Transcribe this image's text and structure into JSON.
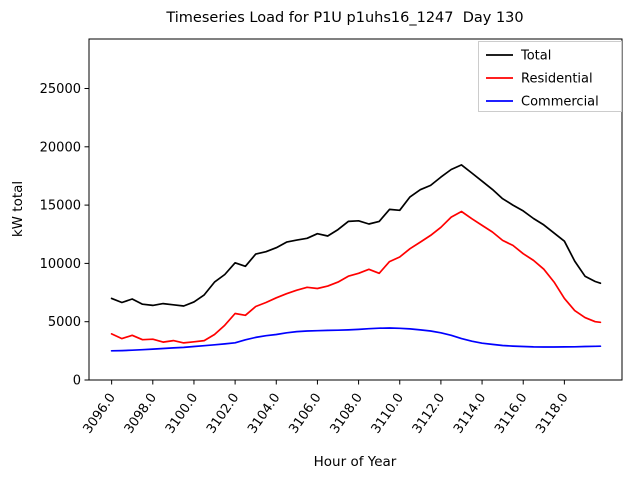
{
  "figure": {
    "title": "Timeseries Load for P1U p1uhs16_1247  Day 130",
    "xlabel": "Hour of Year",
    "ylabel": "kW total",
    "background_color": "#ffffff",
    "spine_color": "#000000"
  },
  "legend": {
    "position": "upper right",
    "border_color": "#cccccc",
    "entries": [
      {
        "label": "Total",
        "color": "#000000"
      },
      {
        "label": "Residential",
        "color": "#ff0000"
      },
      {
        "label": "Commercial",
        "color": "#0000ff"
      }
    ]
  },
  "axes": {
    "xlim": [
      3094.9,
      3120.8
    ],
    "ylim": [
      0,
      29245
    ],
    "xticks": [
      3096,
      3098,
      3100,
      3102,
      3104,
      3106,
      3108,
      3110,
      3112,
      3114,
      3116,
      3118
    ],
    "xtick_labels": [
      "3096.0",
      "3098.0",
      "3100.0",
      "3102.0",
      "3104.0",
      "3106.0",
      "3108.0",
      "3110.0",
      "3112.0",
      "3114.0",
      "3116.0",
      "3118.0"
    ],
    "yticks": [
      0,
      5000,
      10000,
      15000,
      20000,
      25000
    ],
    "ytick_labels": [
      "0",
      "5000",
      "10000",
      "15000",
      "20000",
      "25000"
    ],
    "xtick_rotation_deg": 55
  },
  "chart_data": {
    "type": "line",
    "title": "Timeseries Load for P1U p1uhs16_1247  Day 130",
    "xlabel": "Hour of Year",
    "ylabel": "kW total",
    "xlim": [
      3094.9,
      3120.8
    ],
    "ylim": [
      0,
      29245
    ],
    "grid": false,
    "legend_position": "upper right",
    "x": [
      3096.0,
      3096.5,
      3097.0,
      3097.5,
      3098.0,
      3098.5,
      3099.0,
      3099.5,
      3100.0,
      3100.5,
      3101.0,
      3101.5,
      3102.0,
      3102.5,
      3103.0,
      3103.5,
      3104.0,
      3104.5,
      3105.0,
      3105.5,
      3106.0,
      3106.5,
      3107.0,
      3107.5,
      3108.0,
      3108.5,
      3109.0,
      3109.5,
      3110.0,
      3110.5,
      3111.0,
      3111.5,
      3112.0,
      3112.5,
      3113.0,
      3113.5,
      3114.0,
      3114.5,
      3115.0,
      3115.5,
      3116.0,
      3116.5,
      3117.0,
      3117.5,
      3118.0,
      3118.5,
      3119.0,
      3119.5,
      3119.75
    ],
    "series": [
      {
        "name": "Total",
        "color": "#000000",
        "values": [
          7000,
          6650,
          6950,
          6500,
          6400,
          6550,
          6450,
          6350,
          6700,
          7300,
          8400,
          9050,
          10050,
          9750,
          10800,
          11000,
          11350,
          11830,
          12000,
          12150,
          12550,
          12350,
          12900,
          13600,
          13650,
          13380,
          13600,
          14630,
          14550,
          15700,
          16320,
          16690,
          17400,
          18050,
          18450,
          17750,
          17050,
          16350,
          15550,
          15000,
          14500,
          13850,
          13300,
          12600,
          11900,
          10200,
          8900,
          8450,
          8300
        ]
      },
      {
        "name": "Residential",
        "color": "#ff0000",
        "values": [
          3950,
          3550,
          3830,
          3460,
          3500,
          3250,
          3380,
          3180,
          3280,
          3380,
          3900,
          4700,
          5700,
          5550,
          6300,
          6650,
          7050,
          7400,
          7700,
          7950,
          7850,
          8050,
          8400,
          8900,
          9150,
          9490,
          9150,
          10150,
          10550,
          11260,
          11830,
          12400,
          13100,
          13970,
          14450,
          13830,
          13260,
          12690,
          11970,
          11545,
          10830,
          10260,
          9500,
          8400,
          7000,
          5950,
          5350,
          5000,
          4950
        ]
      },
      {
        "name": "Commercial",
        "color": "#0000ff",
        "values": [
          2500,
          2520,
          2560,
          2600,
          2650,
          2700,
          2750,
          2800,
          2870,
          2940,
          3020,
          3100,
          3190,
          3450,
          3650,
          3800,
          3900,
          4050,
          4150,
          4200,
          4230,
          4250,
          4270,
          4300,
          4340,
          4400,
          4440,
          4460,
          4430,
          4380,
          4300,
          4200,
          4050,
          3830,
          3550,
          3330,
          3160,
          3050,
          2960,
          2910,
          2870,
          2840,
          2830,
          2830,
          2840,
          2850,
          2870,
          2890,
          2900
        ]
      }
    ]
  }
}
